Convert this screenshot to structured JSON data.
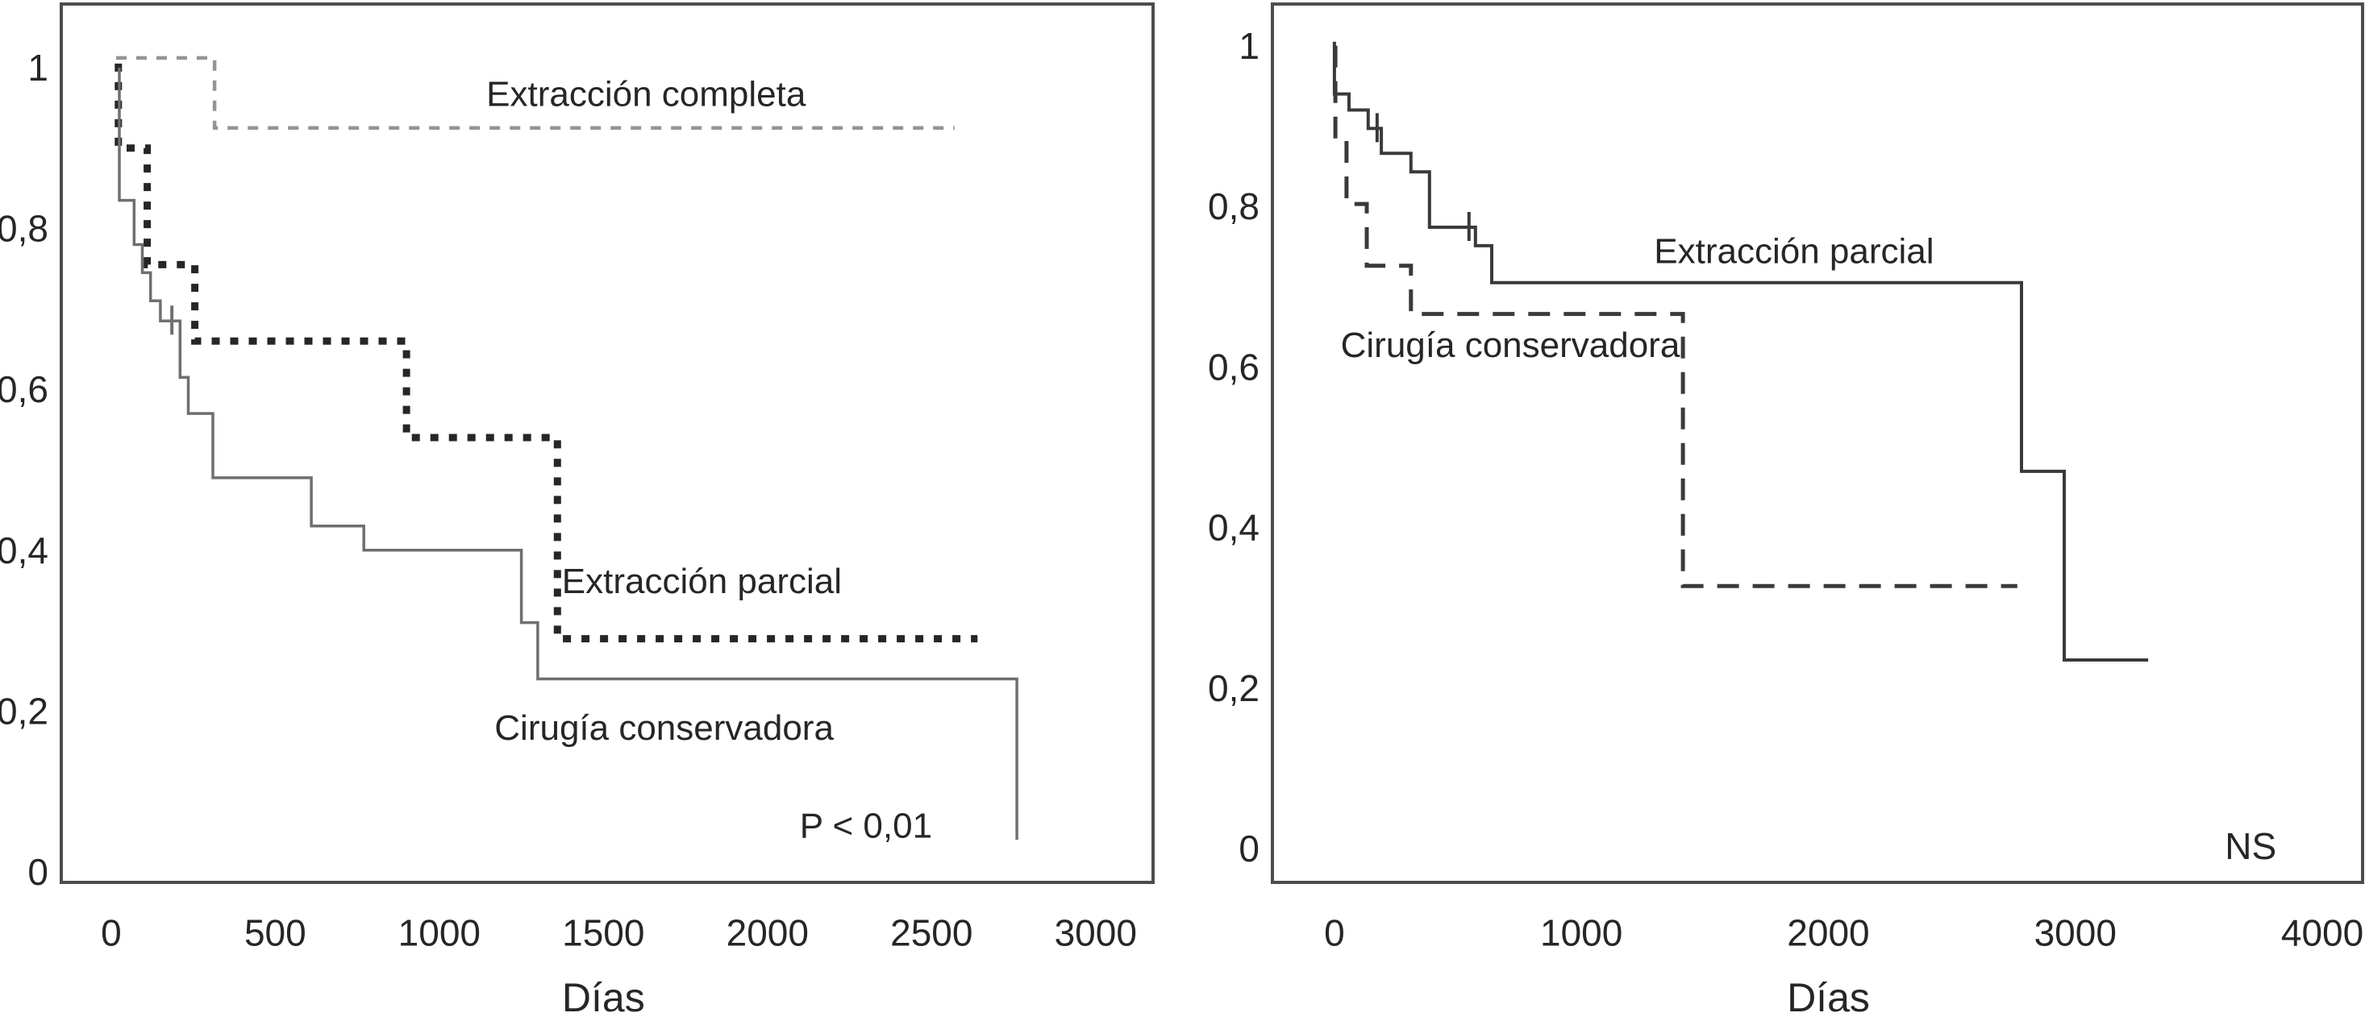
{
  "figure": {
    "background": "#ffffff",
    "text_color": "#262626",
    "frame_color": "#4d4d4d"
  },
  "chart_data": [
    {
      "id": "left-panel",
      "type": "line",
      "subtype": "kaplan-meier-step",
      "xlabel": "Días",
      "grid": false,
      "legend": "inline-annotations",
      "xlim": [
        -152,
        3175
      ],
      "ylim": [
        -0.013,
        1.079
      ],
      "x_ticks": [
        {
          "value": 0,
          "label": "0"
        },
        {
          "value": 500,
          "label": "500"
        },
        {
          "value": 1000,
          "label": "1000"
        },
        {
          "value": 1500,
          "label": "1500"
        },
        {
          "value": 2000,
          "label": "2000"
        },
        {
          "value": 2500,
          "label": "2500"
        },
        {
          "value": 3000,
          "label": "3000"
        }
      ],
      "y_ticks": [
        {
          "value": 0,
          "label": "0"
        },
        {
          "value": 0.2,
          "label": "0,2"
        },
        {
          "value": 0.4,
          "label": "0,4"
        },
        {
          "value": 0.6,
          "label": "0,6"
        },
        {
          "value": 0.8,
          "label": "0,8"
        },
        {
          "value": 1,
          "label": "1"
        }
      ],
      "series": [
        {
          "name": "Extracción completa",
          "color": "#949494",
          "width": 4.5,
          "dash": "13 12",
          "points": [
            [
              15,
              1.012
            ],
            [
              315,
              1.012
            ],
            [
              315,
              0.925
            ],
            [
              2570,
              0.925
            ]
          ]
        },
        {
          "name": "Extracción parcial",
          "color": "#262626",
          "width": 9,
          "dash": "10 13",
          "points": [
            [
              22,
              1.005
            ],
            [
              22,
              0.9
            ],
            [
              110,
              0.9
            ],
            [
              110,
              0.755
            ],
            [
              255,
              0.755
            ],
            [
              255,
              0.66
            ],
            [
              900,
              0.66
            ],
            [
              900,
              0.54
            ],
            [
              1360,
              0.54
            ],
            [
              1360,
              0.29
            ],
            [
              2640,
              0.29
            ]
          ]
        },
        {
          "name": "Cirugía conservadora",
          "color": "#6f6f6f",
          "width": 3.5,
          "dash": "",
          "points": [
            [
              25,
              1.0
            ],
            [
              25,
              0.835
            ],
            [
              70,
              0.835
            ],
            [
              70,
              0.78
            ],
            [
              95,
              0.78
            ],
            [
              95,
              0.745
            ],
            [
              120,
              0.745
            ],
            [
              120,
              0.71
            ],
            [
              150,
              0.71
            ],
            [
              150,
              0.685
            ],
            [
              210,
              0.685
            ],
            [
              210,
              0.615
            ],
            [
              235,
              0.615
            ],
            [
              235,
              0.57
            ],
            [
              310,
              0.57
            ],
            [
              310,
              0.49
            ],
            [
              610,
              0.49
            ],
            [
              610,
              0.43
            ],
            [
              770,
              0.43
            ],
            [
              770,
              0.4
            ],
            [
              1250,
              0.4
            ],
            [
              1250,
              0.31
            ],
            [
              1300,
              0.31
            ],
            [
              1300,
              0.24
            ],
            [
              2760,
              0.24
            ],
            [
              2760,
              0.04
            ]
          ]
        }
      ],
      "censor_marks": [
        {
          "series": 2,
          "x": 185,
          "y": 0.685
        }
      ],
      "annotations": [
        {
          "text": "Extracción completa",
          "x": 1630,
          "y": 0.967,
          "size": 44
        },
        {
          "text": "Extracción parcial",
          "x": 1800,
          "y": 0.361,
          "size": 44
        },
        {
          "text": "Cirugía conservadora",
          "x": 1685,
          "y": 0.179,
          "size": 44
        },
        {
          "text": "P < 0,01",
          "x": 2300,
          "y": 0.057,
          "size": 44
        }
      ]
    },
    {
      "id": "right-panel",
      "type": "line",
      "subtype": "kaplan-meier-step",
      "xlabel": "Días",
      "grid": false,
      "legend": "inline-annotations",
      "xlim": [
        -251,
        4163
      ],
      "ylim": [
        -0.042,
        1.052
      ],
      "x_ticks": [
        {
          "value": 0,
          "label": "0"
        },
        {
          "value": 1000,
          "label": "1000"
        },
        {
          "value": 2000,
          "label": "2000"
        },
        {
          "value": 3000,
          "label": "3000"
        },
        {
          "value": 4000,
          "label": "4000"
        }
      ],
      "y_ticks": [
        {
          "value": 0,
          "label": "0"
        },
        {
          "value": 0.2,
          "label": "0,2"
        },
        {
          "value": 0.4,
          "label": "0,4"
        },
        {
          "value": 0.6,
          "label": "0,6"
        },
        {
          "value": 0.8,
          "label": "0,8"
        },
        {
          "value": 1,
          "label": "1"
        }
      ],
      "series": [
        {
          "name": "Extracción parcial",
          "color": "#3a3a3a",
          "width": 4,
          "dash": "",
          "points": [
            [
              0,
              1.005
            ],
            [
              0,
              0.94
            ],
            [
              59,
              0.94
            ],
            [
              59,
              0.92
            ],
            [
              137,
              0.92
            ],
            [
              137,
              0.897
            ],
            [
              190,
              0.897
            ],
            [
              190,
              0.866
            ],
            [
              310,
              0.866
            ],
            [
              310,
              0.843
            ],
            [
              385,
              0.843
            ],
            [
              385,
              0.774
            ],
            [
              571,
              0.774
            ],
            [
              571,
              0.751
            ],
            [
              637,
              0.751
            ],
            [
              637,
              0.705
            ],
            [
              2782,
              0.705
            ],
            [
              2782,
              0.47
            ],
            [
              2955,
              0.47
            ],
            [
              2955,
              0.235
            ],
            [
              3295,
              0.235
            ]
          ]
        },
        {
          "name": "Cirugía conservadora",
          "color": "#3a3a3a",
          "width": 5,
          "dash": "27 17",
          "points": [
            [
              4,
              1.0
            ],
            [
              4,
              0.883
            ],
            [
              49,
              0.883
            ],
            [
              49,
              0.803
            ],
            [
              131,
              0.803
            ],
            [
              131,
              0.726
            ],
            [
              310,
              0.726
            ],
            [
              310,
              0.666
            ],
            [
              1411,
              0.666
            ],
            [
              1411,
              0.327
            ],
            [
              2765,
              0.327
            ]
          ]
        }
      ],
      "censor_marks": [
        {
          "series": 0,
          "x": 173,
          "y": 0.897
        },
        {
          "series": 0,
          "x": 545,
          "y": 0.774
        }
      ],
      "annotations": [
        {
          "text": "Extracción parcial",
          "x": 1861,
          "y": 0.744,
          "size": 44
        },
        {
          "text": "Cirugía conservadora",
          "x": 712,
          "y": 0.627,
          "size": 44
        },
        {
          "text": "NS",
          "x": 3710,
          "y": 0.003,
          "size": 46
        }
      ]
    }
  ]
}
